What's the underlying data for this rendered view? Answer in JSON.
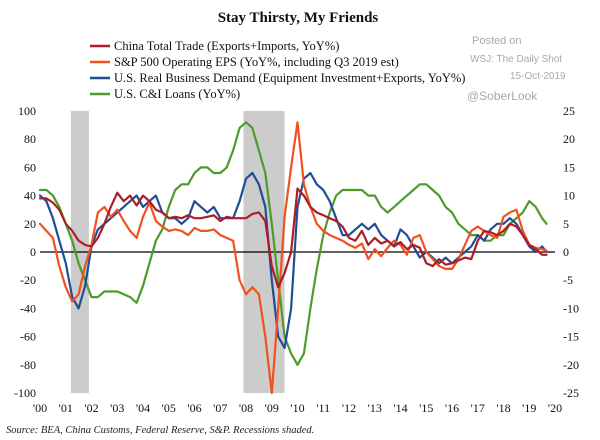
{
  "chart_data": {
    "type": "line",
    "title": "Stay Thirsty, My Friends",
    "source": "Source: BEA, China Customs, Federal Reserve, S&P. Recessions shaded.",
    "watermark": {
      "line1": "Posted on",
      "line2": "WSJ: The Daily Shot",
      "line3": "15-Oct-2019",
      "line4": "@SoberLook"
    },
    "x_tick_labels": [
      "'00",
      "'01",
      "'02",
      "'03",
      "'04",
      "'05",
      "'06",
      "'07",
      "'08",
      "'09",
      "'10",
      "'11",
      "'12",
      "'13",
      "'14",
      "'15",
      "'16",
      "'17",
      "'18",
      "'19",
      "'20"
    ],
    "xlim": [
      2000,
      2020
    ],
    "y_left": {
      "ylim": [
        -100,
        100
      ],
      "ticks": [
        -100,
        -80,
        -60,
        -40,
        -20,
        0,
        20,
        40,
        60,
        80,
        100
      ]
    },
    "y_right": {
      "ylim": [
        -25,
        25
      ],
      "ticks": [
        -25,
        -20,
        -15,
        -10,
        -5,
        0,
        5,
        10,
        15,
        20,
        25
      ]
    },
    "recessions": [
      [
        2001.2,
        2001.9
      ],
      [
        2007.9,
        2009.5
      ]
    ],
    "colors": {
      "china": "#b01c25",
      "sp500": "#f0521f",
      "business": "#1f4e96",
      "loans": "#4e9a2b",
      "recession": "#cccccc",
      "zero_line": "#000000"
    },
    "series": [
      {
        "key": "china",
        "name": "China Total Trade (Exports+Imports, YoY%)",
        "axis": "left",
        "x": [
          2000,
          2000.25,
          2000.5,
          2000.75,
          2001,
          2001.25,
          2001.5,
          2001.75,
          2002,
          2002.25,
          2002.5,
          2002.75,
          2003,
          2003.25,
          2003.5,
          2003.75,
          2004,
          2004.25,
          2004.5,
          2004.75,
          2005,
          2005.25,
          2005.5,
          2005.75,
          2006,
          2006.25,
          2006.5,
          2006.75,
          2007,
          2007.25,
          2007.5,
          2007.75,
          2008,
          2008.25,
          2008.5,
          2008.75,
          2009,
          2009.25,
          2009.5,
          2009.75,
          2010,
          2010.25,
          2010.5,
          2010.75,
          2011,
          2011.25,
          2011.5,
          2011.75,
          2012,
          2012.25,
          2012.5,
          2012.75,
          2013,
          2013.25,
          2013.5,
          2013.75,
          2014,
          2014.25,
          2014.5,
          2014.75,
          2015,
          2015.25,
          2015.5,
          2015.75,
          2016,
          2016.25,
          2016.5,
          2016.75,
          2017,
          2017.25,
          2017.5,
          2017.75,
          2018,
          2018.25,
          2018.5,
          2018.75,
          2019,
          2019.25,
          2019.5,
          2019.67
        ],
        "y": [
          38,
          38,
          35,
          30,
          20,
          15,
          8,
          5,
          4,
          10,
          20,
          32,
          42,
          36,
          40,
          33,
          40,
          36,
          30,
          28,
          24,
          25,
          24,
          26,
          24,
          24,
          25,
          26,
          22,
          25,
          24,
          24,
          24,
          27,
          28,
          22,
          -10,
          -25,
          -15,
          0,
          45,
          40,
          32,
          28,
          26,
          24,
          22,
          18,
          10,
          8,
          15,
          5,
          10,
          6,
          8,
          4,
          7,
          2,
          5,
          3,
          -8,
          -10,
          -5,
          -9,
          -8,
          -6,
          -4,
          -5,
          8,
          15,
          14,
          12,
          15,
          20,
          18,
          12,
          5,
          2,
          -2,
          -2
        ]
      },
      {
        "key": "sp500",
        "name": "S&P 500 Operating EPS (YoY%, including Q3 2019 est)",
        "axis": "left",
        "x": [
          2000,
          2000.25,
          2000.5,
          2000.75,
          2001,
          2001.25,
          2001.5,
          2001.75,
          2002,
          2002.25,
          2002.5,
          2002.75,
          2003,
          2003.25,
          2003.5,
          2003.75,
          2004,
          2004.25,
          2004.5,
          2004.75,
          2005,
          2005.25,
          2005.5,
          2005.75,
          2006,
          2006.25,
          2006.5,
          2006.75,
          2007,
          2007.25,
          2007.5,
          2007.75,
          2008,
          2008.25,
          2008.5,
          2008.75,
          2009,
          2009.25,
          2009.5,
          2009.75,
          2010,
          2010.25,
          2010.5,
          2010.75,
          2011,
          2011.25,
          2011.5,
          2011.75,
          2012,
          2012.25,
          2012.5,
          2012.75,
          2013,
          2013.25,
          2013.5,
          2013.75,
          2014,
          2014.25,
          2014.5,
          2014.75,
          2015,
          2015.25,
          2015.5,
          2015.75,
          2016,
          2016.25,
          2016.5,
          2016.75,
          2017,
          2017.25,
          2017.5,
          2017.75,
          2018,
          2018.25,
          2018.5,
          2018.75,
          2019,
          2019.25,
          2019.5,
          2019.67
        ],
        "y": [
          20,
          15,
          10,
          -10,
          -25,
          -35,
          -30,
          -10,
          5,
          28,
          32,
          25,
          30,
          22,
          15,
          10,
          25,
          35,
          22,
          18,
          15,
          16,
          15,
          12,
          17,
          15,
          15,
          16,
          12,
          10,
          8,
          -20,
          -30,
          -25,
          -30,
          -60,
          -100,
          -40,
          25,
          60,
          92,
          48,
          32,
          20,
          15,
          12,
          10,
          8,
          5,
          3,
          6,
          -5,
          2,
          -3,
          3,
          8,
          5,
          -2,
          10,
          12,
          0,
          -5,
          -10,
          -12,
          -12,
          -5,
          5,
          15,
          18,
          15,
          12,
          10,
          25,
          28,
          30,
          15,
          5,
          3,
          2,
          1
        ]
      },
      {
        "key": "business",
        "name": "U.S. Real Business Demand (Equipment Investment+Exports, YoY%)",
        "axis": "right",
        "x": [
          2000,
          2000.25,
          2000.5,
          2000.75,
          2001,
          2001.25,
          2001.5,
          2001.75,
          2002,
          2002.25,
          2002.5,
          2002.75,
          2003,
          2003.25,
          2003.5,
          2003.75,
          2004,
          2004.25,
          2004.5,
          2004.75,
          2005,
          2005.25,
          2005.5,
          2005.75,
          2006,
          2006.25,
          2006.5,
          2006.75,
          2007,
          2007.25,
          2007.5,
          2007.75,
          2008,
          2008.25,
          2008.5,
          2008.75,
          2009,
          2009.25,
          2009.5,
          2009.75,
          2010,
          2010.25,
          2010.5,
          2010.75,
          2011,
          2011.25,
          2011.5,
          2011.75,
          2012,
          2012.25,
          2012.5,
          2012.75,
          2013,
          2013.25,
          2013.5,
          2013.75,
          2014,
          2014.25,
          2014.5,
          2014.75,
          2015,
          2015.25,
          2015.5,
          2015.75,
          2016,
          2016.25,
          2016.5,
          2016.75,
          2017,
          2017.25,
          2017.5,
          2017.75,
          2018,
          2018.25,
          2018.5,
          2018.75,
          2019,
          2019.25,
          2019.5,
          2019.67
        ],
        "y": [
          10,
          9,
          6,
          2,
          -2,
          -8,
          -10,
          -6,
          1,
          4,
          5,
          6,
          7,
          8,
          9,
          10,
          8,
          9,
          10,
          7,
          6,
          6,
          5,
          6,
          9,
          8,
          7,
          8,
          6,
          6,
          6,
          9,
          13,
          14,
          12,
          8,
          -5,
          -15,
          -17,
          -10,
          8,
          13,
          14,
          12,
          11,
          9,
          6,
          3,
          3,
          4,
          5,
          4,
          5,
          3,
          2,
          1,
          4,
          3,
          1,
          -1,
          0,
          -1,
          -2,
          -1,
          -2,
          -1,
          0,
          1,
          3,
          2,
          4,
          5,
          5,
          6,
          5,
          3,
          1,
          0,
          1,
          0
        ]
      },
      {
        "key": "loans",
        "name": "U.S. C&I Loans (YoY%)",
        "axis": "right",
        "x": [
          2000,
          2000.25,
          2000.5,
          2000.75,
          2001,
          2001.25,
          2001.5,
          2001.75,
          2002,
          2002.25,
          2002.5,
          2002.75,
          2003,
          2003.25,
          2003.5,
          2003.75,
          2004,
          2004.25,
          2004.5,
          2004.75,
          2005,
          2005.25,
          2005.5,
          2005.75,
          2006,
          2006.25,
          2006.5,
          2006.75,
          2007,
          2007.25,
          2007.5,
          2007.75,
          2008,
          2008.25,
          2008.5,
          2008.75,
          2009,
          2009.25,
          2009.5,
          2009.75,
          2010,
          2010.25,
          2010.5,
          2010.75,
          2011,
          2011.25,
          2011.5,
          2011.75,
          2012,
          2012.25,
          2012.5,
          2012.75,
          2013,
          2013.25,
          2013.5,
          2013.75,
          2014,
          2014.25,
          2014.5,
          2014.75,
          2015,
          2015.25,
          2015.5,
          2015.75,
          2016,
          2016.25,
          2016.5,
          2016.75,
          2017,
          2017.25,
          2017.5,
          2017.75,
          2018,
          2018.25,
          2018.5,
          2018.75,
          2019,
          2019.25,
          2019.5,
          2019.67
        ],
        "y": [
          11,
          11,
          10,
          8,
          5,
          2,
          -2,
          -5,
          -8,
          -8,
          -7,
          -7,
          -7,
          -7.5,
          -8,
          -9,
          -6,
          -2,
          2,
          4,
          8,
          11,
          12,
          12,
          14,
          15,
          15,
          14,
          14,
          15,
          18,
          22,
          23,
          22,
          18,
          14,
          5,
          -5,
          -15,
          -18,
          -20,
          -18,
          -10,
          -3,
          3,
          7,
          10,
          11,
          11,
          11,
          11,
          10,
          10,
          8,
          7,
          8,
          9,
          10,
          11,
          12,
          12,
          11,
          10,
          8,
          7,
          5,
          4,
          3,
          3,
          2,
          2,
          3,
          3,
          5,
          6,
          7,
          9,
          8,
          6,
          5
        ]
      }
    ]
  }
}
